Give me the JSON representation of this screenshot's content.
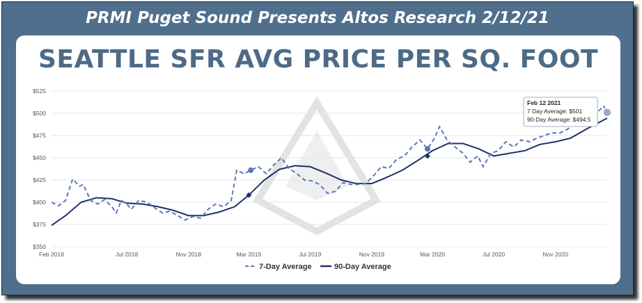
{
  "banner": "PRMI Puget Sound Presents Altos Research 2/12/21",
  "headline": "SEATTLE SFR AVG PRICE PER SQ. FOOT",
  "colors": {
    "frame": "#4f6f8c",
    "line7": "#5a78b5",
    "line90": "#1f2f6b",
    "headline": "#4d6b87"
  },
  "chart_data": {
    "type": "line",
    "title": "SEATTLE SFR AVG PRICE PER SQ. FOOT",
    "xlabel": "",
    "ylabel": "",
    "ylim": [
      350,
      525
    ],
    "xlim": [
      "2018-02-01",
      "2021-02-12"
    ],
    "y_ticks": [
      "$350",
      "$375",
      "$400",
      "$425",
      "$450",
      "$475",
      "$500",
      "$525"
    ],
    "y_tick_values": [
      350,
      375,
      400,
      425,
      450,
      475,
      500,
      525
    ],
    "x_ticks": [
      "Feb 2018",
      "Jul 2018",
      "Nov 2018",
      "Mar 2019",
      "Jul 2019",
      "Nov 2019",
      "Mar 2020",
      "Jul 2020",
      "Nov 2020"
    ],
    "x_tick_dates": [
      "2018-02-01",
      "2018-07-01",
      "2018-11-01",
      "2019-03-01",
      "2019-07-01",
      "2019-11-01",
      "2020-03-01",
      "2020-07-01",
      "2020-11-01"
    ],
    "grid": true,
    "legend": "bottom",
    "series": [
      {
        "name": "7-Day Average",
        "style": "dashed",
        "points": [
          [
            "2018-02-01",
            400
          ],
          [
            "2018-02-15",
            396
          ],
          [
            "2018-03-01",
            402
          ],
          [
            "2018-03-15",
            426
          ],
          [
            "2018-03-29",
            418
          ],
          [
            "2018-04-05",
            420
          ],
          [
            "2018-04-20",
            402
          ],
          [
            "2018-05-04",
            398
          ],
          [
            "2018-05-18",
            403
          ],
          [
            "2018-06-01",
            395
          ],
          [
            "2018-06-10",
            388
          ],
          [
            "2018-06-20",
            402
          ],
          [
            "2018-07-01",
            398
          ],
          [
            "2018-07-10",
            392
          ],
          [
            "2018-07-25",
            402
          ],
          [
            "2018-08-10",
            400
          ],
          [
            "2018-08-25",
            394
          ],
          [
            "2018-09-10",
            388
          ],
          [
            "2018-09-25",
            390
          ],
          [
            "2018-10-10",
            385
          ],
          [
            "2018-10-25",
            380
          ],
          [
            "2018-11-10",
            384
          ],
          [
            "2018-11-25",
            382
          ],
          [
            "2018-12-10",
            392
          ],
          [
            "2018-12-25",
            398
          ],
          [
            "2019-01-10",
            395
          ],
          [
            "2019-01-25",
            402
          ],
          [
            "2019-02-05",
            436
          ],
          [
            "2019-02-20",
            432
          ],
          [
            "2019-03-05",
            436
          ],
          [
            "2019-03-20",
            440
          ],
          [
            "2019-04-05",
            432
          ],
          [
            "2019-04-20",
            442
          ],
          [
            "2019-05-05",
            450
          ],
          [
            "2019-05-20",
            438
          ],
          [
            "2019-06-05",
            432
          ],
          [
            "2019-06-20",
            425
          ],
          [
            "2019-07-05",
            424
          ],
          [
            "2019-07-20",
            420
          ],
          [
            "2019-08-05",
            410
          ],
          [
            "2019-08-20",
            412
          ],
          [
            "2019-09-05",
            422
          ],
          [
            "2019-09-20",
            420
          ],
          [
            "2019-10-05",
            420
          ],
          [
            "2019-10-20",
            421
          ],
          [
            "2019-11-05",
            430
          ],
          [
            "2019-11-20",
            440
          ],
          [
            "2019-12-05",
            438
          ],
          [
            "2019-12-20",
            448
          ],
          [
            "2020-01-05",
            452
          ],
          [
            "2020-01-20",
            462
          ],
          [
            "2020-02-05",
            470
          ],
          [
            "2020-02-20",
            460
          ],
          [
            "2020-03-05",
            472
          ],
          [
            "2020-03-15",
            485
          ],
          [
            "2020-03-30",
            470
          ],
          [
            "2020-04-15",
            462
          ],
          [
            "2020-05-01",
            455
          ],
          [
            "2020-05-15",
            445
          ],
          [
            "2020-05-30",
            452
          ],
          [
            "2020-06-10",
            440
          ],
          [
            "2020-06-25",
            455
          ],
          [
            "2020-07-10",
            458
          ],
          [
            "2020-07-25",
            468
          ],
          [
            "2020-08-10",
            462
          ],
          [
            "2020-08-25",
            470
          ],
          [
            "2020-09-10",
            468
          ],
          [
            "2020-09-25",
            472
          ],
          [
            "2020-10-10",
            475
          ],
          [
            "2020-10-25",
            478
          ],
          [
            "2020-11-10",
            478
          ],
          [
            "2020-11-25",
            482
          ],
          [
            "2020-12-10",
            490
          ],
          [
            "2020-12-25",
            495
          ],
          [
            "2021-01-10",
            505
          ],
          [
            "2021-01-25",
            502
          ],
          [
            "2021-02-05",
            508
          ],
          [
            "2021-02-12",
            501
          ]
        ]
      },
      {
        "name": "90-Day Average",
        "style": "solid",
        "points": [
          [
            "2018-02-01",
            374
          ],
          [
            "2018-03-01",
            385
          ],
          [
            "2018-04-01",
            400
          ],
          [
            "2018-05-01",
            405
          ],
          [
            "2018-06-01",
            404
          ],
          [
            "2018-07-01",
            399
          ],
          [
            "2018-08-01",
            398
          ],
          [
            "2018-09-01",
            395
          ],
          [
            "2018-10-01",
            391
          ],
          [
            "2018-11-01",
            385
          ],
          [
            "2018-12-01",
            385
          ],
          [
            "2019-01-01",
            389
          ],
          [
            "2019-02-01",
            395
          ],
          [
            "2019-03-01",
            408
          ],
          [
            "2019-04-01",
            425
          ],
          [
            "2019-05-01",
            437
          ],
          [
            "2019-06-01",
            441
          ],
          [
            "2019-07-01",
            440
          ],
          [
            "2019-08-01",
            433
          ],
          [
            "2019-09-01",
            425
          ],
          [
            "2019-10-01",
            421
          ],
          [
            "2019-11-01",
            421
          ],
          [
            "2019-12-01",
            428
          ],
          [
            "2020-01-01",
            436
          ],
          [
            "2020-02-01",
            447
          ],
          [
            "2020-03-01",
            458
          ],
          [
            "2020-04-01",
            466
          ],
          [
            "2020-05-01",
            466
          ],
          [
            "2020-06-01",
            460
          ],
          [
            "2020-07-01",
            452
          ],
          [
            "2020-08-01",
            455
          ],
          [
            "2020-09-01",
            458
          ],
          [
            "2020-10-01",
            465
          ],
          [
            "2020-11-01",
            468
          ],
          [
            "2020-12-01",
            472
          ],
          [
            "2021-01-01",
            482
          ],
          [
            "2021-02-12",
            494.5
          ]
        ]
      }
    ],
    "highlight_markers": [
      {
        "series": "7-Day Average",
        "x": "2019-03-05",
        "y": 436
      },
      {
        "series": "7-Day Average",
        "x": "2020-02-20",
        "y": 460
      },
      {
        "series": "90-Day Average",
        "x": "2019-03-01",
        "y": 408
      },
      {
        "series": "90-Day Average",
        "x": "2020-02-20",
        "y": 452
      }
    ],
    "tooltip": {
      "date": "Feb 12 2021",
      "line1": "7 Day Average: $501",
      "line2": "90-Day Average: $494.5"
    }
  }
}
